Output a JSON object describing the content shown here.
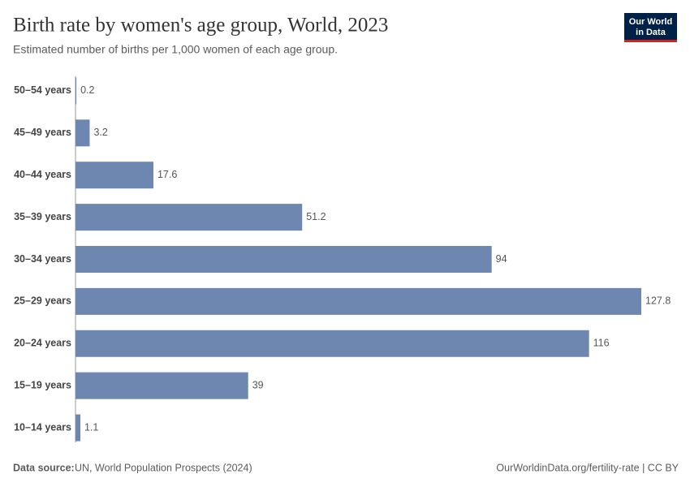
{
  "chart_data": {
    "type": "bar",
    "orientation": "horizontal",
    "title": "Birth rate by women's age group, World, 2023",
    "subtitle": "Estimated number of births per 1,000 women of each age group.",
    "categories": [
      "50–54 years",
      "45–49 years",
      "40–44 years",
      "35–39 years",
      "30–34 years",
      "25–29 years",
      "20–24 years",
      "15–19 years",
      "10–14 years"
    ],
    "values": [
      0.2,
      3.2,
      17.6,
      51.2,
      94,
      127.8,
      116,
      39,
      1.1
    ],
    "color": "#6d87b0",
    "source_label": "Data source:",
    "source": "UN, World Population Prospects (2024)",
    "footer_right": "OurWorldinData.org/fertility-rate | CC BY",
    "logo": [
      "Our World",
      "in Data"
    ]
  }
}
